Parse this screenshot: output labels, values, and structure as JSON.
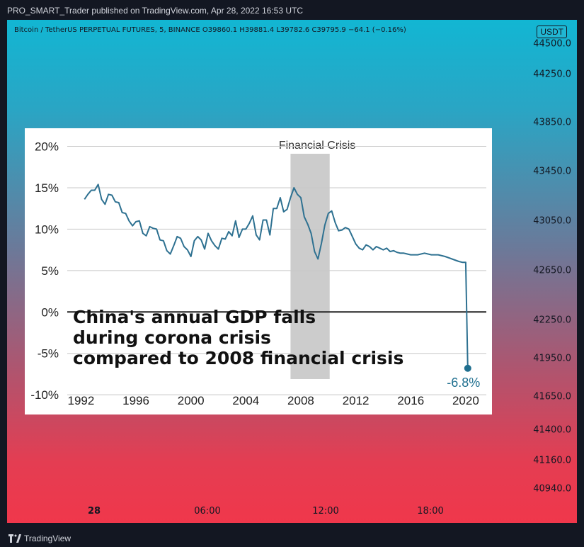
{
  "header": {
    "published": "PRO_SMART_Trader published on TradingView.com, Apr 28, 2022 16:53 UTC"
  },
  "legend": {
    "text": "Bitcoin / TetherUS PERPETUAL FUTURES, 5, BINANCE  O39860.1  H39881.4  L39782.6  C39795.9  −64.1 (−0.16%)"
  },
  "currency": "USDT",
  "price_axis": [
    "44500.0",
    "44250.0",
    "43850.0",
    "43450.0",
    "43050.0",
    "42650.0",
    "42250.0",
    "41950.0",
    "41650.0",
    "41400.0",
    "41160.0",
    "40940.0"
  ],
  "time_axis": [
    {
      "label": "28",
      "bold": true
    },
    {
      "label": "06:00",
      "bold": false
    },
    {
      "label": "12:00",
      "bold": false
    },
    {
      "label": "18:00",
      "bold": false
    }
  ],
  "footer": {
    "brand": "TradingView"
  },
  "colors": {
    "line": "#2e7191",
    "shade": "#cccccc",
    "marker": "#1f6f8f"
  },
  "chart_data": {
    "type": "line",
    "title": "",
    "annotation": [
      "China's annual GDP falls",
      "during corona crisis",
      "compared to 2008 financial crisis"
    ],
    "shade": {
      "label": "Financial Crisis",
      "x_start": 2007.25,
      "x_end": 2010.1
    },
    "xlim": [
      1991.0,
      2021.5
    ],
    "ylim": [
      -10.5,
      21.5
    ],
    "x_ticks": [
      1992,
      1996,
      2000,
      2004,
      2008,
      2012,
      2016,
      2020
    ],
    "y_ticks": [
      {
        "v": 20,
        "label": "20%"
      },
      {
        "v": 15,
        "label": "15%"
      },
      {
        "v": 10,
        "label": "10%"
      },
      {
        "v": 5,
        "label": "5%"
      },
      {
        "v": 0,
        "label": "0%"
      },
      {
        "v": -5,
        "label": "-5%"
      },
      {
        "v": -10,
        "label": "-10%"
      }
    ],
    "end_label": "-6.8%",
    "series": [
      {
        "x": [
          1992.25,
          1992.5,
          1992.75,
          1993.0,
          1993.25,
          1993.5,
          1993.75,
          1994.0,
          1994.25,
          1994.5,
          1994.75,
          1995.0,
          1995.25,
          1995.5,
          1995.75,
          1996.0,
          1996.25,
          1996.5,
          1996.75,
          1997.0,
          1997.25,
          1997.5,
          1997.75,
          1998.0,
          1998.25,
          1998.5,
          1998.75,
          1999.0,
          1999.25,
          1999.5,
          1999.75,
          2000.0,
          2000.25,
          2000.5,
          2000.75,
          2001.0,
          2001.25,
          2001.5,
          2001.75,
          2002.0,
          2002.25,
          2002.5,
          2002.75,
          2003.0,
          2003.25,
          2003.5,
          2003.75,
          2004.0,
          2004.25,
          2004.5,
          2004.75,
          2005.0,
          2005.25,
          2005.5,
          2005.75,
          2006.0,
          2006.25,
          2006.5,
          2006.75,
          2007.0,
          2007.25,
          2007.5,
          2007.75,
          2008.0,
          2008.25,
          2008.5,
          2008.75,
          2009.0,
          2009.25,
          2009.5,
          2009.75,
          2010.0,
          2010.25,
          2010.5,
          2010.75,
          2011.0,
          2011.25,
          2011.5,
          2011.75,
          2012.0,
          2012.25,
          2012.5,
          2012.75,
          2013.0,
          2013.25,
          2013.5,
          2013.75,
          2014.0,
          2014.25,
          2014.5,
          2014.75,
          2015.0,
          2015.25,
          2015.5,
          2015.75,
          2016.0,
          2016.5,
          2017.0,
          2017.5,
          2018.0,
          2018.5,
          2019.0,
          2019.5,
          2019.75,
          2020.0,
          2020.15
        ],
        "y": [
          13.6,
          14.2,
          14.7,
          14.7,
          15.4,
          13.6,
          13.0,
          14.2,
          14.1,
          13.3,
          13.2,
          12.0,
          11.9,
          11.0,
          10.4,
          10.9,
          11.0,
          9.5,
          9.2,
          10.3,
          10.1,
          10.0,
          8.7,
          8.6,
          7.4,
          7.0,
          8.0,
          9.1,
          8.9,
          7.9,
          7.5,
          6.7,
          8.6,
          9.1,
          8.7,
          7.6,
          9.5,
          8.6,
          8.0,
          7.6,
          8.9,
          8.8,
          9.7,
          9.2,
          11.0,
          9.0,
          10.0,
          10.0,
          10.7,
          11.6,
          9.3,
          8.7,
          11.1,
          11.1,
          9.3,
          12.5,
          12.5,
          13.8,
          12.1,
          12.4,
          13.8,
          15.0,
          14.2,
          13.8,
          11.5,
          10.6,
          9.5,
          7.3,
          6.4,
          8.3,
          10.5,
          11.9,
          12.2,
          10.8,
          9.8,
          9.9,
          10.2,
          10.0,
          9.1,
          8.2,
          7.7,
          7.5,
          8.1,
          7.9,
          7.5,
          7.9,
          7.7,
          7.5,
          7.7,
          7.3,
          7.4,
          7.2,
          7.1,
          7.1,
          7.0,
          6.9,
          6.9,
          7.1,
          6.9,
          6.9,
          6.7,
          6.4,
          6.1,
          6.0,
          6.0,
          -6.8
        ]
      }
    ]
  }
}
